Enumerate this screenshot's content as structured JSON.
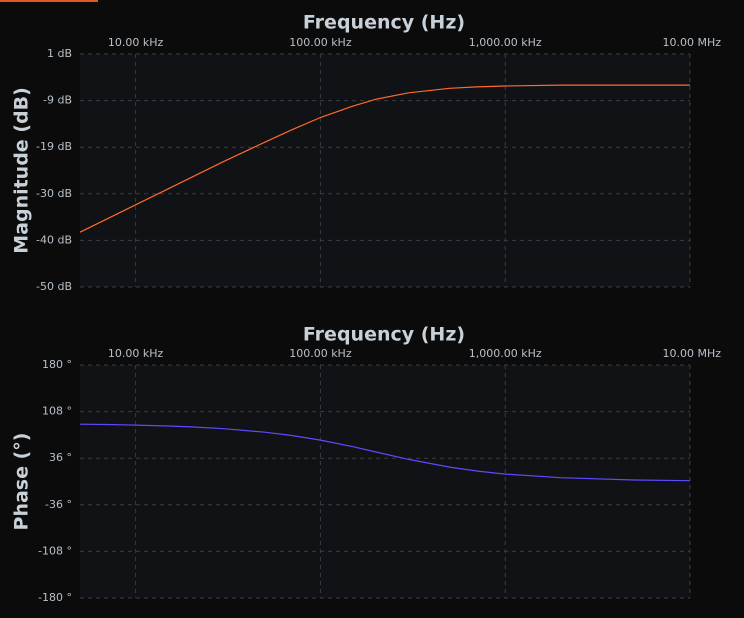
{
  "chart_data": [
    {
      "type": "line",
      "title": "Frequency (Hz)",
      "y_label": "Magnitude (dB)",
      "xscale": "log",
      "grid": true,
      "x": [
        5000,
        7000,
        10000,
        15000,
        20000,
        30000,
        50000,
        70000,
        100000,
        150000,
        200000,
        300000,
        500000,
        700000,
        1000000,
        2000000,
        5000000,
        10000000
      ],
      "series": [
        {
          "name": "Magnitude",
          "color": "#ff6a2a",
          "values": [
            -38.0,
            -35.1,
            -32.0,
            -28.5,
            -26.0,
            -22.5,
            -18.3,
            -15.6,
            -12.9,
            -10.4,
            -8.9,
            -7.5,
            -6.5,
            -6.2,
            -6.0,
            -5.8,
            -5.8,
            -5.8
          ]
        }
      ],
      "xlim": [
        5000,
        10000000
      ],
      "xticks": [
        {
          "value": 10000,
          "label": "10.00 kHz"
        },
        {
          "value": 100000,
          "label": "100.00 kHz"
        },
        {
          "value": 1000000,
          "label": "1,000.00 kHz"
        },
        {
          "value": 10000000,
          "label": "10.00 MHz"
        }
      ],
      "ylim": [
        -50,
        1
      ],
      "yticks": [
        {
          "value": 1,
          "label": "1 dB"
        },
        {
          "value": -9.2,
          "label": "-9 dB"
        },
        {
          "value": -19.4,
          "label": "-19 dB"
        },
        {
          "value": -29.6,
          "label": "-30 dB"
        },
        {
          "value": -39.8,
          "label": "-40 dB"
        },
        {
          "value": -50,
          "label": "-50 dB"
        }
      ]
    },
    {
      "type": "line",
      "title": "Frequency (Hz)",
      "y_label": "Phase (°)",
      "xscale": "log",
      "grid": true,
      "x": [
        5000,
        7000,
        10000,
        15000,
        20000,
        30000,
        50000,
        70000,
        100000,
        150000,
        200000,
        300000,
        500000,
        700000,
        1000000,
        2000000,
        5000000,
        10000000
      ],
      "series": [
        {
          "name": "Phase",
          "color": "#5b4cff",
          "values": [
            88.6,
            88.0,
            87.2,
            85.8,
            84.4,
            81.6,
            76.2,
            71.0,
            63.9,
            53.7,
            45.6,
            34.2,
            22.2,
            16.2,
            11.5,
            5.8,
            2.3,
            1.2
          ]
        }
      ],
      "xlim": [
        5000,
        10000000
      ],
      "xticks": [
        {
          "value": 10000,
          "label": "10.00 kHz"
        },
        {
          "value": 100000,
          "label": "100.00 kHz"
        },
        {
          "value": 1000000,
          "label": "1,000.00 kHz"
        },
        {
          "value": 10000000,
          "label": "10.00 MHz"
        }
      ],
      "ylim": [
        -180,
        180
      ],
      "yticks": [
        {
          "value": 180,
          "label": "180 °"
        },
        {
          "value": 108,
          "label": "108 °"
        },
        {
          "value": 36,
          "label": "36 °"
        },
        {
          "value": -36,
          "label": "-36 °"
        },
        {
          "value": -108,
          "label": "-108 °"
        },
        {
          "value": -180,
          "label": "-180 °"
        }
      ]
    }
  ]
}
